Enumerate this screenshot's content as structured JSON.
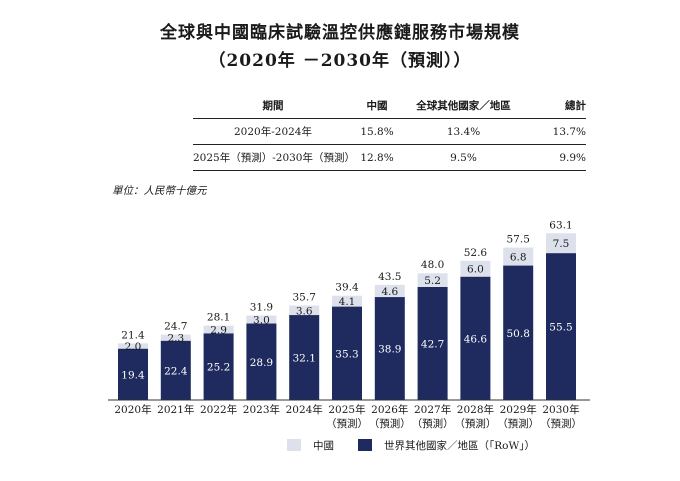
{
  "title": "全球與中國臨床試驗溫控供應鏈服務市場規模",
  "subtitle": "（2020年 －2030年（預測））",
  "cagr_table": {
    "headers": [
      "期間",
      "中國",
      "全球其他國家／地區",
      "總計"
    ],
    "rows": [
      [
        "2020年-2024年",
        "15.8%",
        "13.4%",
        "13.7%"
      ],
      [
        "2025年（預測）-2030年（預測）",
        "12.8%",
        "9.5%",
        "9.9%"
      ]
    ]
  },
  "unit_label": "單位：人民幣十億元",
  "colors": {
    "china": "#dde1ec",
    "row": "#1f2a5e",
    "axis": "#333333"
  },
  "chart_data": {
    "type": "bar",
    "stacked": true,
    "categories": [
      "2020年",
      "2021年",
      "2022年",
      "2023年",
      "2024年",
      "2025年（預測）",
      "2026年（預測）",
      "2027年（預測）",
      "2028年（預測）",
      "2029年（預測）",
      "2030年（預測）"
    ],
    "series": [
      {
        "name": "世界其他國家／地區（「RoW」）",
        "values": [
          19.4,
          22.4,
          25.2,
          28.9,
          32.1,
          35.3,
          38.9,
          42.7,
          46.6,
          50.8,
          55.5
        ]
      },
      {
        "name": "中國",
        "values": [
          2.0,
          2.3,
          2.9,
          3.0,
          3.6,
          4.1,
          4.6,
          5.2,
          6.0,
          6.8,
          7.5
        ]
      }
    ],
    "totals": [
      21.4,
      24.7,
      28.1,
      31.9,
      35.7,
      39.4,
      43.5,
      48.0,
      52.6,
      57.5,
      63.1
    ],
    "legend": [
      "中國",
      "世界其他國家／地區（「RoW」）"
    ],
    "ylim": [
      0,
      63.1
    ]
  }
}
